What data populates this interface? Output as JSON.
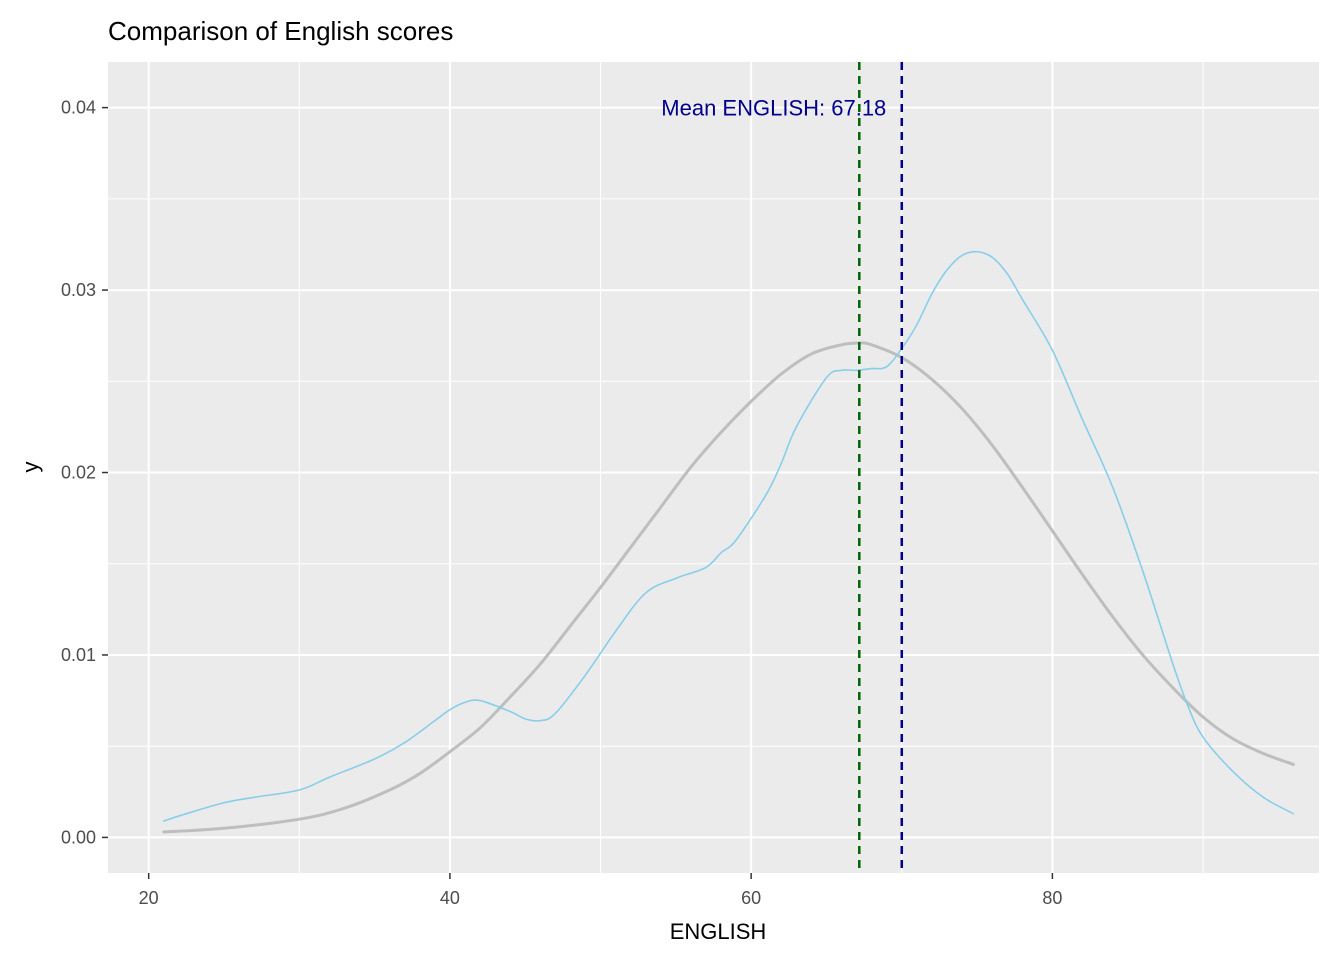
{
  "chart_data": {
    "type": "line",
    "title": "Comparison of English scores",
    "xlabel": "ENGLISH",
    "ylabel": "y",
    "xlim": [
      17.3,
      97.7
    ],
    "ylim": [
      -0.00195,
      0.0425
    ],
    "x_ticks": [
      20,
      40,
      60,
      80
    ],
    "x_minor_ticks": [
      30,
      50,
      70,
      90
    ],
    "y_ticks": [
      0.0,
      0.01,
      0.02,
      0.03,
      0.04
    ],
    "y_tick_labels": [
      "0.00",
      "0.01",
      "0.02",
      "0.03",
      "0.04"
    ],
    "y_minor_ticks": [
      0.005,
      0.015,
      0.025,
      0.035
    ],
    "grid": true,
    "legend": "none",
    "background_color": "#EBEBEB",
    "grid_color": "#FFFFFF",
    "series": [
      {
        "key": "empirical_density",
        "color": "#87CEEB",
        "x": [
          21,
          22.5,
          25,
          27,
          30,
          32,
          35,
          37,
          39,
          40,
          41,
          42,
          44,
          45,
          46,
          47,
          49,
          51,
          53,
          55,
          57,
          58,
          59,
          61,
          62,
          63,
          65,
          66,
          67,
          68,
          69,
          70,
          71,
          72,
          73,
          74,
          75,
          76,
          77,
          78,
          80,
          82,
          84,
          86,
          88,
          89,
          90,
          92,
          94,
          96
        ],
        "y": [
          0.0009,
          0.0013,
          0.0019,
          0.0022,
          0.0026,
          0.0033,
          0.0043,
          0.0052,
          0.0064,
          0.007,
          0.0074,
          0.0075,
          0.0069,
          0.0065,
          0.0064,
          0.0068,
          0.0089,
          0.0113,
          0.0134,
          0.0142,
          0.0148,
          0.0156,
          0.0163,
          0.0188,
          0.0205,
          0.0225,
          0.0252,
          0.0256,
          0.0256,
          0.0257,
          0.0258,
          0.0268,
          0.0281,
          0.0298,
          0.0311,
          0.0319,
          0.0321,
          0.0318,
          0.0309,
          0.0295,
          0.0267,
          0.0229,
          0.0192,
          0.0146,
          0.0095,
          0.0072,
          0.0055,
          0.0036,
          0.0022,
          0.0013
        ]
      },
      {
        "key": "normal_density",
        "color": "#BEBEBE",
        "x": [
          21,
          25,
          30,
          33,
          36,
          38,
          40,
          42,
          44,
          46,
          48,
          50,
          52,
          54,
          56,
          58,
          60,
          62,
          64,
          66,
          67.18,
          68,
          70,
          72,
          74,
          76,
          78,
          80,
          82,
          84,
          86,
          88,
          90,
          92,
          94,
          96
        ],
        "y": [
          0.0003,
          0.0005,
          0.001,
          0.0016,
          0.0026,
          0.0035,
          0.0047,
          0.006,
          0.0077,
          0.0095,
          0.0116,
          0.0137,
          0.0159,
          0.0181,
          0.0203,
          0.0222,
          0.0239,
          0.0254,
          0.0265,
          0.027,
          0.0271,
          0.027,
          0.0263,
          0.0251,
          0.0235,
          0.0215,
          0.0192,
          0.0168,
          0.0144,
          0.0121,
          0.01,
          0.0082,
          0.0066,
          0.0054,
          0.0046,
          0.004
        ]
      }
    ],
    "vlines": [
      {
        "x": 67.18,
        "color": "#006400",
        "style": "dashed"
      },
      {
        "x": 70,
        "color": "#00008B",
        "style": "dashed"
      }
    ],
    "annotations": [
      {
        "text": "Mean ENGLISH: 67.18",
        "x": 67.18,
        "y": 0.04,
        "color": "#00008B",
        "anchor": "end"
      }
    ]
  }
}
